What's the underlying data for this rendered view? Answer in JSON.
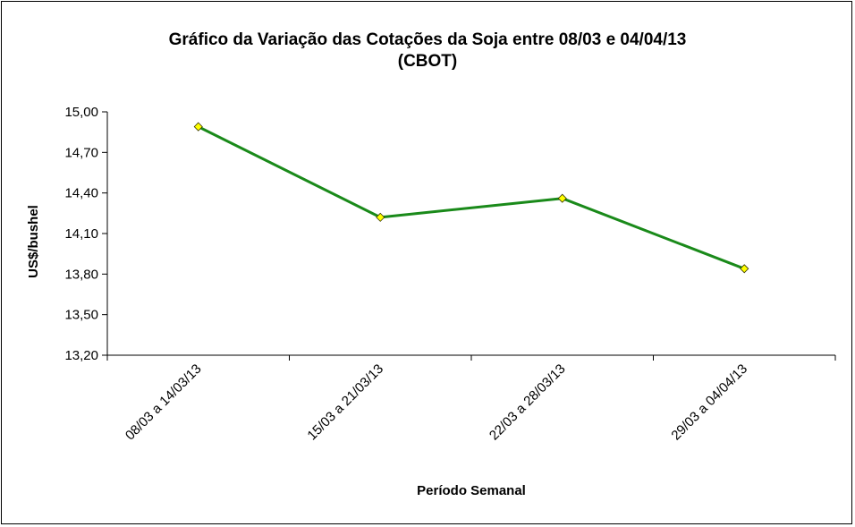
{
  "chart_data": {
    "type": "line",
    "title": "Gráfico da Variação das Cotações da Soja entre 08/03 e 04/04/13",
    "subtitle": "(CBOT)",
    "xlabel": "Período Semanal",
    "ylabel": "US$/bushel",
    "ylim": [
      13.2,
      15.0
    ],
    "yticks": [
      "15,00",
      "14,70",
      "14,40",
      "14,10",
      "13,80",
      "13,50",
      "13,20"
    ],
    "ytick_values": [
      15.0,
      14.7,
      14.4,
      14.1,
      13.8,
      13.5,
      13.2
    ],
    "categories": [
      "08/03 a 14/03/13",
      "15/03 a 21/03/13",
      "22/03 a 28/03/13",
      "29/03 a 04/04/13"
    ],
    "series": [
      {
        "values": [
          14.89,
          14.22,
          14.36,
          13.84
        ],
        "color": "#1a8a1a",
        "marker_color": "#ffff00"
      }
    ],
    "grid": false,
    "legend": "none"
  }
}
